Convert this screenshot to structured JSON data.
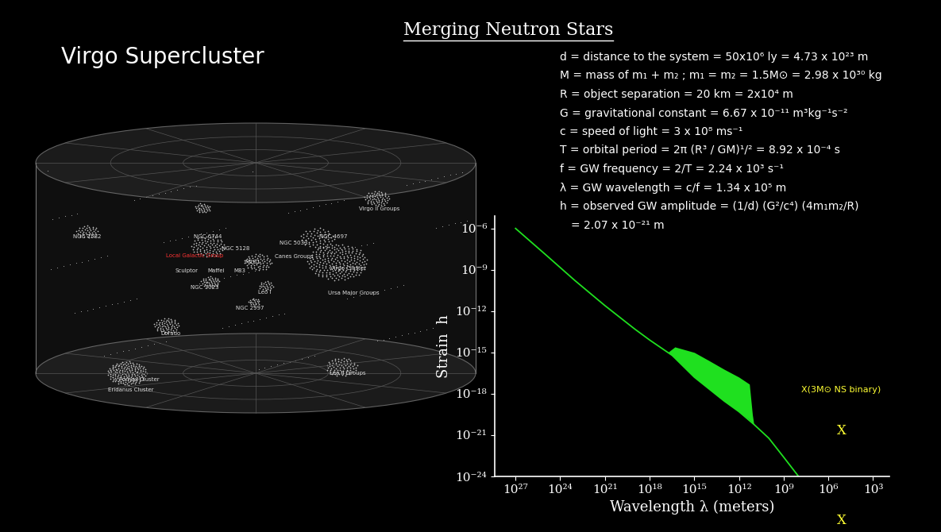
{
  "title": "Merging Neutron Stars",
  "left_panel": {
    "title": "Virgo Supercluster",
    "labels": [
      "NGC 7582",
      "NGC 6744",
      "NGC 5128",
      "Local Galactic Group",
      "Sculptor",
      "Maffei",
      "M101",
      "M83",
      "Canes Groups",
      "NGC 5033",
      "NGC 4697",
      "Virgo II Groups",
      "Virgo Cluster",
      "Ursa Major Groups",
      "Leo I",
      "NGC 1023",
      "NGC 2997",
      "Dorado",
      "Fornax Cluster",
      "Eridanus Cluster",
      "Leo II Groups"
    ],
    "highlight": "Local Galactic Group"
  },
  "equations": [
    "d = distance to the system = 50x10⁶ ly = 4.73 x 10²³ m",
    "M = mass of m₁ + m₂ ; m₁ = m₂ = 1.5M⊙ = 2.98 x 10³⁰ kg",
    "R = object separation = 20 km = 2x10⁴ m",
    "G = gravitational constant = 6.67 x 10⁻¹¹ m³kg⁻¹s⁻²",
    "c = speed of light = 3 x 10⁸ ms⁻¹",
    "T = orbital period = 2π (R³ / GM)¹/² = 8.92 x 10⁻⁴ s",
    "f = GW frequency = 2/T = 2.24 x 10³ s⁻¹",
    "λ = GW wavelength = c/f = 1.34 x 10⁵ m",
    "h = observed GW amplitude = (1/d) (G²/c⁴) (4m₁m₂/R)",
    "= 2.07 x 10⁻²¹ m"
  ],
  "chart_data": {
    "type": "line",
    "log": true,
    "x_label": "Wavelength λ (meters)",
    "y_label": "Strain  h",
    "xlim": [
      2.5e+28,
      80
    ],
    "ylim": [
      1e-24,
      8e-06
    ],
    "xticks": [
      {
        "value": 1e+27,
        "label": "10²⁷"
      },
      {
        "value": 1e+24,
        "label": "10²⁴"
      },
      {
        "value": 1e+21,
        "label": "10²¹"
      },
      {
        "value": 1e+18,
        "label": "10¹⁸"
      },
      {
        "value": 1000000000000000.0,
        "label": "10¹⁵"
      },
      {
        "value": 1000000000000.0,
        "label": "10¹²"
      },
      {
        "value": 1000000000.0,
        "label": "10⁹"
      },
      {
        "value": 1000000.0,
        "label": "10⁶"
      },
      {
        "value": 1000.0,
        "label": "10³"
      }
    ],
    "yticks": [
      {
        "value": 1e-06,
        "label": "10⁻⁶"
      },
      {
        "value": 1e-09,
        "label": "10⁻⁹"
      },
      {
        "value": 1e-12,
        "label": "10⁻¹²"
      },
      {
        "value": 1e-15,
        "label": "10⁻¹⁵"
      },
      {
        "value": 1e-18,
        "label": "10⁻¹⁸"
      },
      {
        "value": 1e-21,
        "label": "10⁻²¹"
      },
      {
        "value": 1e-24,
        "label": "10⁻²⁴"
      }
    ],
    "color": "#1fe01f",
    "x": [
      1e+27,
      1e+25,
      1e+23,
      1e+21,
      1e+19,
      1e+18,
      3e+16,
      1000000000000000.0,
      10000000000000.0,
      1000000000000.0,
      100000000000.0,
      10000000000.0,
      1000000000.0,
      100000000.0
    ],
    "values": [
      1e-06,
      1.3e-08,
      1.6e-10,
      2.5e-12,
      5e-14,
      8e-15,
      6e-16,
      1.6e-17,
      3e-19,
      5e-20,
      6e-21,
      6e-22,
      2.5e-23,
      1e-24
    ],
    "band": {
      "x": [
        6e+16,
        2e+16,
        1000000000000000.0,
        100000000000000.0,
        10000000000000.0,
        1000000000000.0,
        200000000000.0,
        125000000000.0,
        100000000000.0
      ],
      "lower": [
        1e-15,
        4e-16,
        1.6e-17,
        2.2e-18,
        3e-19,
        5e-20,
        1.3e-20,
        8e-21,
        6e-21
      ],
      "upper": [
        1e-15,
        2.5e-15,
        1e-15,
        2.5e-16,
        6e-17,
        1.6e-17,
        5e-18,
        3e-20,
        6e-21
      ]
    },
    "points": [
      {
        "x": 134000.0,
        "y": 2.07e-21,
        "label": "X",
        "color": "#ffff33"
      }
    ],
    "annotations": [
      {
        "text": "X(3M⊙ NS binary)",
        "x": 134000.0,
        "y": 2e-18,
        "color": "#ffff33"
      }
    ],
    "axis_marks": [
      {
        "x": 134000.0,
        "label": "X",
        "color": "#ffff33"
      }
    ]
  }
}
